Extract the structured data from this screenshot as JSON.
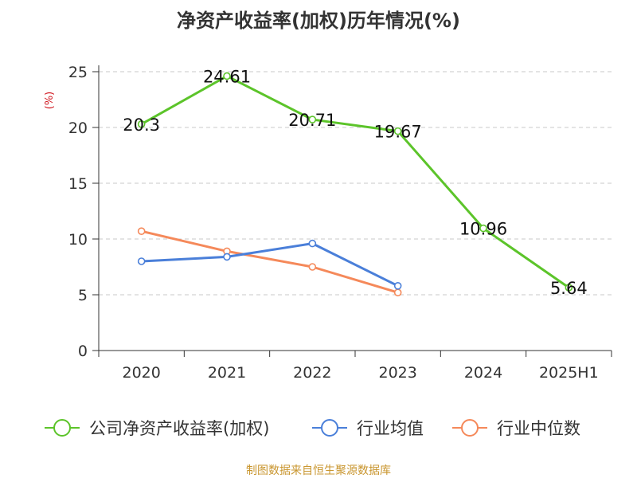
{
  "chart_data": {
    "type": "line",
    "title": "净资产收益率(加权)历年情况(%)",
    "ylabel": "(%)",
    "categories": [
      "2020",
      "2021",
      "2022",
      "2023",
      "2024",
      "2025H1"
    ],
    "ylim": [
      0,
      25
    ],
    "yticks": [
      0,
      5,
      10,
      15,
      20,
      25
    ],
    "grid": true,
    "legend_position": "bottom",
    "series": [
      {
        "name": "公司净资产收益率(加权)",
        "color": "#5cc42a",
        "values": [
          20.3,
          24.61,
          20.71,
          19.67,
          10.96,
          5.64
        ],
        "labels": [
          "20.3",
          "24.61",
          "20.71",
          "19.67",
          "10.96",
          "5.64"
        ]
      },
      {
        "name": "行业均值",
        "color": "#4a7fd9",
        "values": [
          8.0,
          8.4,
          9.6,
          5.8,
          null,
          null
        ]
      },
      {
        "name": "行业中位数",
        "color": "#f5895a",
        "values": [
          10.7,
          8.9,
          7.5,
          5.2,
          null,
          null
        ]
      }
    ]
  },
  "source": "制图数据来自恒生聚源数据库"
}
